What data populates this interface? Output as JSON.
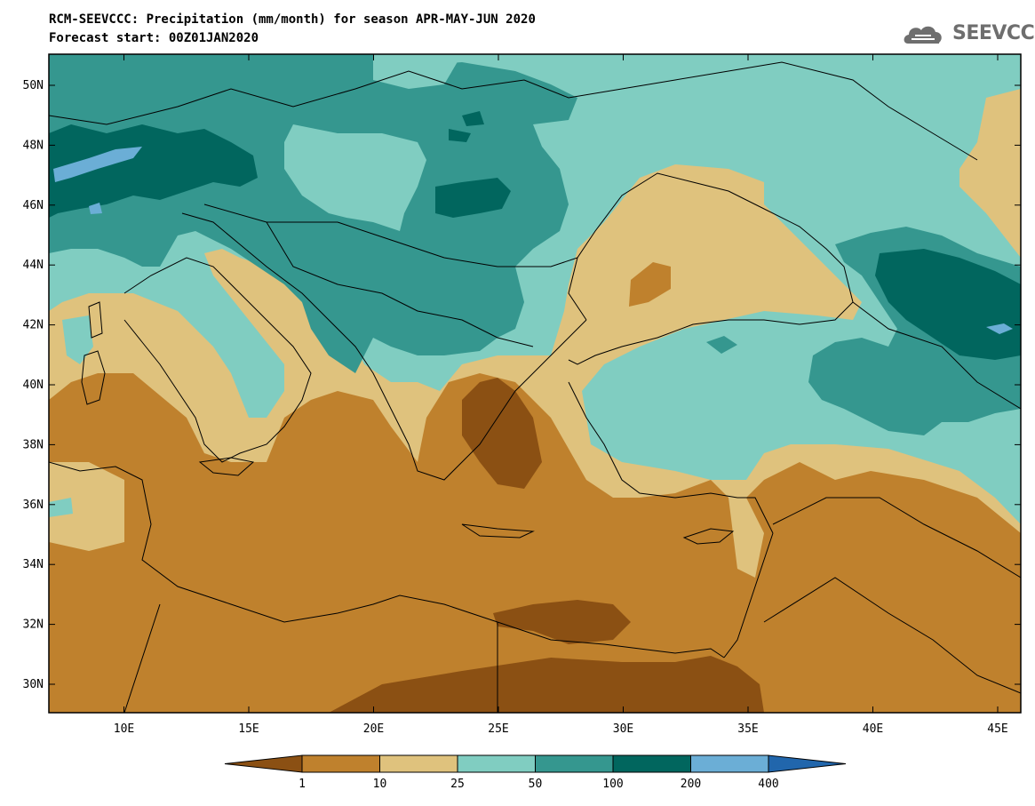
{
  "header": {
    "title_line1": "RCM-SEEVCCC: Precipitation (mm/month) for season APR-MAY-JUN 2020",
    "title_line2": "Forecast start: 00Z01JAN2020",
    "logo_text": "SEEVCCC"
  },
  "map": {
    "lat_labels": [
      "50N",
      "48N",
      "46N",
      "44N",
      "42N",
      "40N",
      "38N",
      "36N",
      "34N",
      "32N",
      "30N"
    ],
    "lon_labels": [
      "10E",
      "15E",
      "20E",
      "25E",
      "30E",
      "35E",
      "40E",
      "45E"
    ],
    "colors": {
      "lt1": "#8b5013",
      "c1_10": "#bf812d",
      "c10_25": "#dfc27d",
      "c25_50": "#80cdc1",
      "c50_100": "#35978f",
      "c100_200": "#01665e",
      "c200_400": "#6baed6",
      "gt400": "#2166ac"
    }
  },
  "colorbar": {
    "tick_labels": [
      "1",
      "10",
      "25",
      "50",
      "100",
      "200",
      "400"
    ],
    "colors": [
      "#8b5013",
      "#bf812d",
      "#dfc27d",
      "#80cdc1",
      "#35978f",
      "#01665e",
      "#6baed6",
      "#2166ac"
    ]
  }
}
